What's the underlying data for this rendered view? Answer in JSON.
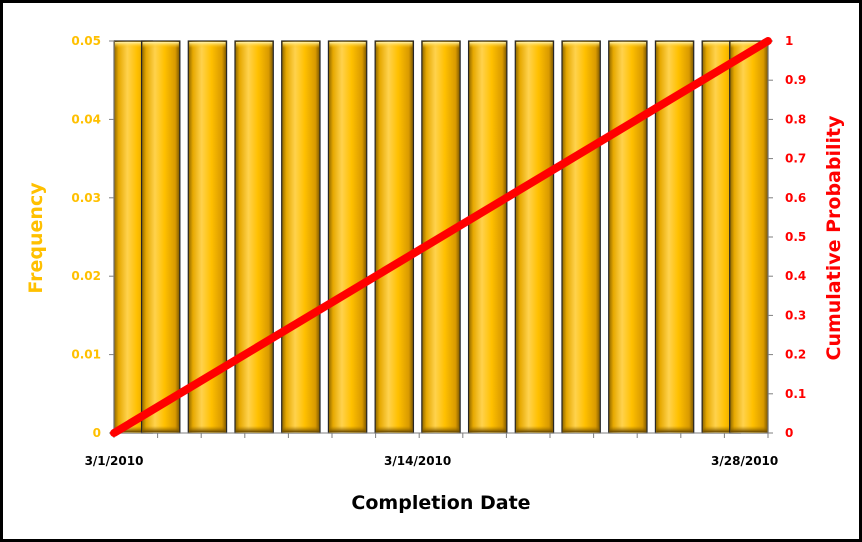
{
  "chart_data": {
    "type": "bar",
    "title": "",
    "xlabel": "Completion Date",
    "ylabel": "Frequency",
    "y2label": "Cumulative Probability",
    "x_tick_labels": [
      "3/1/2010",
      "3/14/2010",
      "3/28/2010"
    ],
    "y_ticks": [
      "0",
      "0.01",
      "0.02",
      "0.03",
      "0.04",
      "0.05"
    ],
    "y2_ticks": [
      "0",
      "0.1",
      "0.2",
      "0.3",
      "0.4",
      "0.5",
      "0.6",
      "0.7",
      "0.8",
      "0.9",
      "1"
    ],
    "ylim": [
      0,
      0.05
    ],
    "y2lim": [
      0,
      1
    ],
    "x_range": [
      "3/1/2010",
      "3/29/2010"
    ],
    "bars": {
      "name": "Frequency",
      "axis": "left",
      "bin_days": 2,
      "x": [
        "3/1/2010",
        "3/3/2010",
        "3/5/2010",
        "3/7/2010",
        "3/9/2010",
        "3/11/2010",
        "3/13/2010",
        "3/15/2010",
        "3/17/2010",
        "3/19/2010",
        "3/21/2010",
        "3/23/2010",
        "3/25/2010",
        "3/27/2010",
        "3/29/2010"
      ],
      "values": [
        0.05,
        0.05,
        0.05,
        0.05,
        0.05,
        0.05,
        0.05,
        0.05,
        0.05,
        0.05,
        0.05,
        0.05,
        0.05,
        0.05,
        0.05
      ],
      "color": "#FFC000"
    },
    "line": {
      "name": "Cumulative Probability",
      "axis": "right",
      "x": [
        "3/1/2010",
        "3/29/2010"
      ],
      "values": [
        0,
        1
      ],
      "color": "#FF0000"
    },
    "grid": false,
    "legend": "none",
    "colors": {
      "left_axis_text": "#FFC000",
      "right_axis_text": "#FF0000",
      "bar_outline": "#262626",
      "frame": "#000000"
    }
  }
}
